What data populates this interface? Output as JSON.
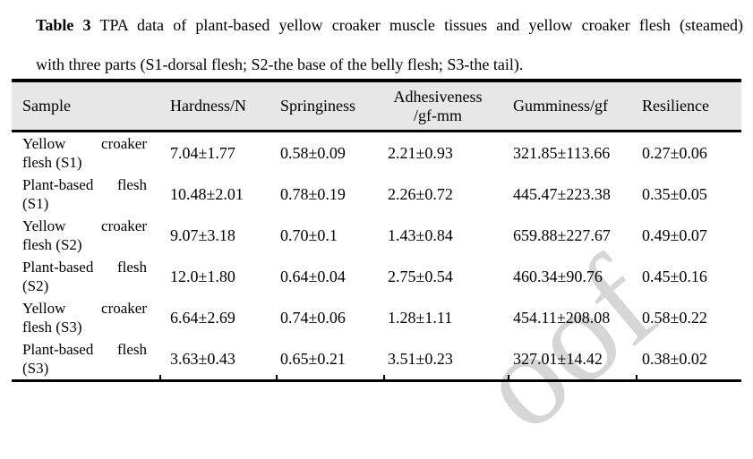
{
  "caption": {
    "label": "Table 3",
    "text_after_label": "TPA data of plant-based yellow croaker muscle tissues and yellow croaker flesh (steamed)",
    "line2": "with three parts (S1-dorsal flesh; S2-the base of the belly flesh; S3-the tail)."
  },
  "table": {
    "headers": [
      {
        "text": "Sample"
      },
      {
        "text": "Hardness/N"
      },
      {
        "text": "Springiness"
      },
      {
        "text": "Adhesiveness",
        "sub": "/gf-mm"
      },
      {
        "text": "Gumminess/gf"
      },
      {
        "text": "Resilience"
      }
    ],
    "rows": [
      [
        "Yellow croaker flesh (S1)",
        "7.04±1.77",
        "0.58±0.09",
        "2.21±0.93",
        "321.85±113.66",
        "0.27±0.06"
      ],
      [
        "Plant-based flesh (S1)",
        "10.48±2.01",
        "0.78±0.19",
        "2.26±0.72",
        "445.47±223.38",
        "0.35±0.05"
      ],
      [
        "Yellow croaker flesh (S2)",
        "9.07±3.18",
        "0.70±0.1",
        "1.43±0.84",
        "659.88±227.67",
        "0.49±0.07"
      ],
      [
        "Plant-based flesh (S2)",
        "12.0±1.80",
        "0.64±0.04",
        "2.75±0.54",
        "460.34±90.76",
        "0.45±0.16"
      ],
      [
        "Yellow croaker flesh (S3)",
        "6.64±2.69",
        "0.74±0.06",
        "1.28±1.11",
        "454.11±208.08",
        "0.58±0.22"
      ],
      [
        "Plant-based flesh (S3)",
        "3.63±0.43",
        "0.65±0.21",
        "3.51±0.23",
        "327.01±14.42",
        "0.38±0.02"
      ]
    ]
  },
  "watermark": {
    "text": "oof",
    "color": "#d6d6d6"
  },
  "colors": {
    "header_background": "#e7e7e7",
    "rule": "#000000",
    "text": "#000000"
  }
}
